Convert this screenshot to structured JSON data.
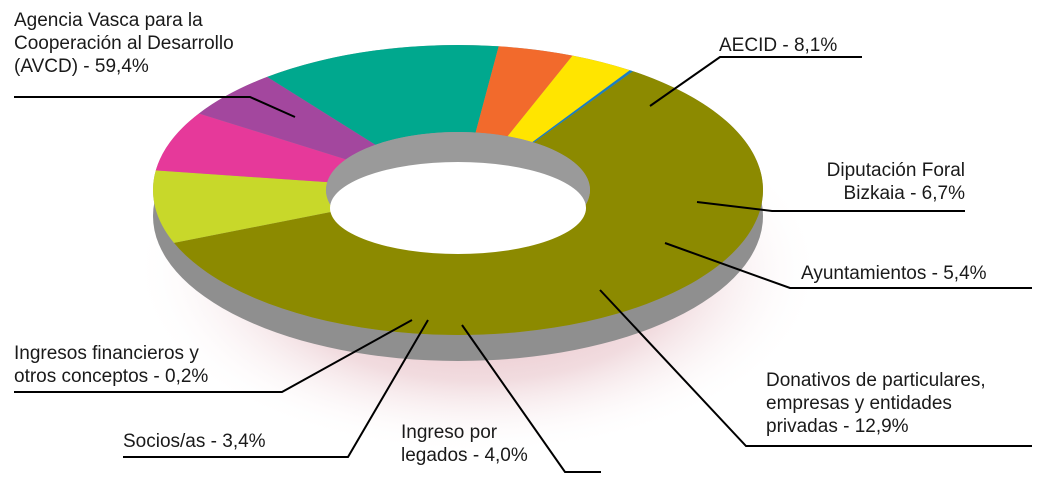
{
  "chart_data": {
    "type": "pie",
    "variant": "3d-donut",
    "slices": [
      {
        "label": [
          "Agencia Vasca para la",
          "Cooperación al Desarrollo",
          "(AVCD) - 59,4%"
        ],
        "value": 59.4,
        "color": "#8c8a00"
      },
      {
        "label": [
          "AECID - 8,1%"
        ],
        "value": 8.1,
        "color": "#c8d82a"
      },
      {
        "label": [
          "Diputación Foral",
          "Bizkaia - 6,7%"
        ],
        "value": 6.7,
        "color": "#e6399a"
      },
      {
        "label": [
          "Ayuntamientos - 5,4%"
        ],
        "value": 5.4,
        "color": "#a3479e"
      },
      {
        "label": [
          "Donativos de particulares,",
          "empresas y entidades",
          "privadas -  12,9%"
        ],
        "value": 12.9,
        "color": "#00a88e"
      },
      {
        "label": [
          "Ingreso por",
          "legados - 4,0%"
        ],
        "value": 4.0,
        "color": "#f26a2c"
      },
      {
        "label": [
          "Socios/as - 3,4%"
        ],
        "value": 3.4,
        "color": "#ffe500"
      },
      {
        "label": [
          "Ingresos financieros y",
          "otros conceptos - 0,2%"
        ],
        "value": 0.2,
        "color": "#1a7fc1"
      }
    ]
  }
}
